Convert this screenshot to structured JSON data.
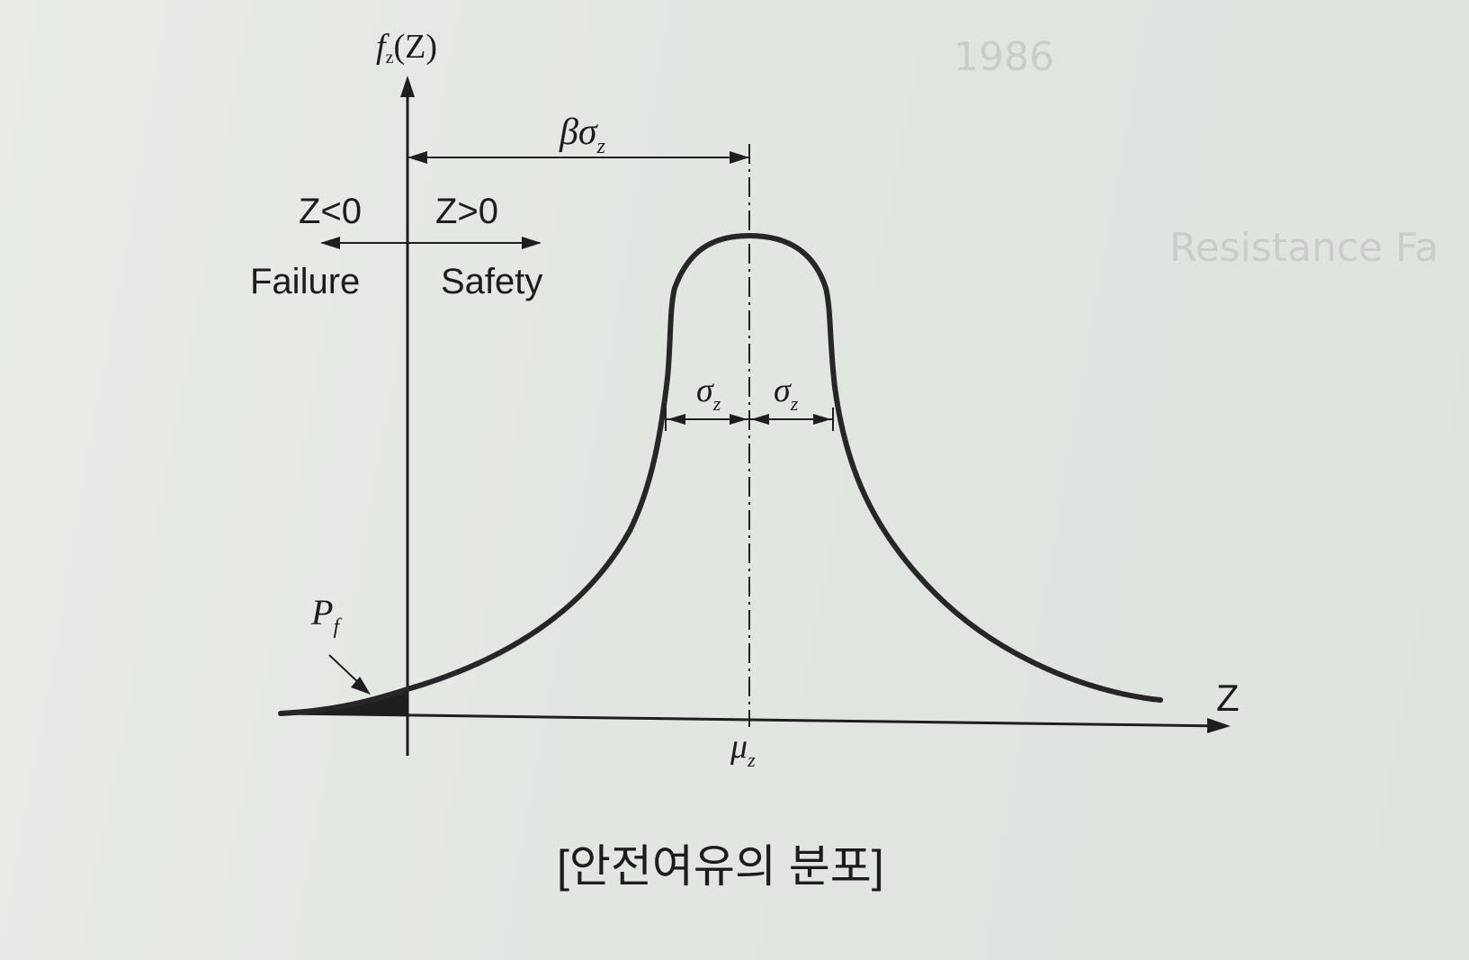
{
  "diagram": {
    "y_axis_label": "f",
    "y_axis_label_sub": "z",
    "y_axis_label_arg": "(Z)",
    "x_axis_label": "Z",
    "beta_label": "β",
    "beta_sigma_label": "σ",
    "beta_sigma_sub": "z",
    "z_negative_label": "Z<0",
    "z_positive_label": "Z>0",
    "failure_label": "Failure",
    "safety_label": "Safety",
    "sigma_left_label": "σ",
    "sigma_left_sub": "z",
    "sigma_right_label": "σ",
    "sigma_right_sub": "z",
    "pf_label": "P",
    "pf_sub": "f",
    "mu_label": "μ",
    "mu_sub": "z"
  },
  "caption": "[안전여유의 분포]",
  "colors": {
    "paper": "#e6e9e4",
    "ink": "#1e1e1e"
  }
}
